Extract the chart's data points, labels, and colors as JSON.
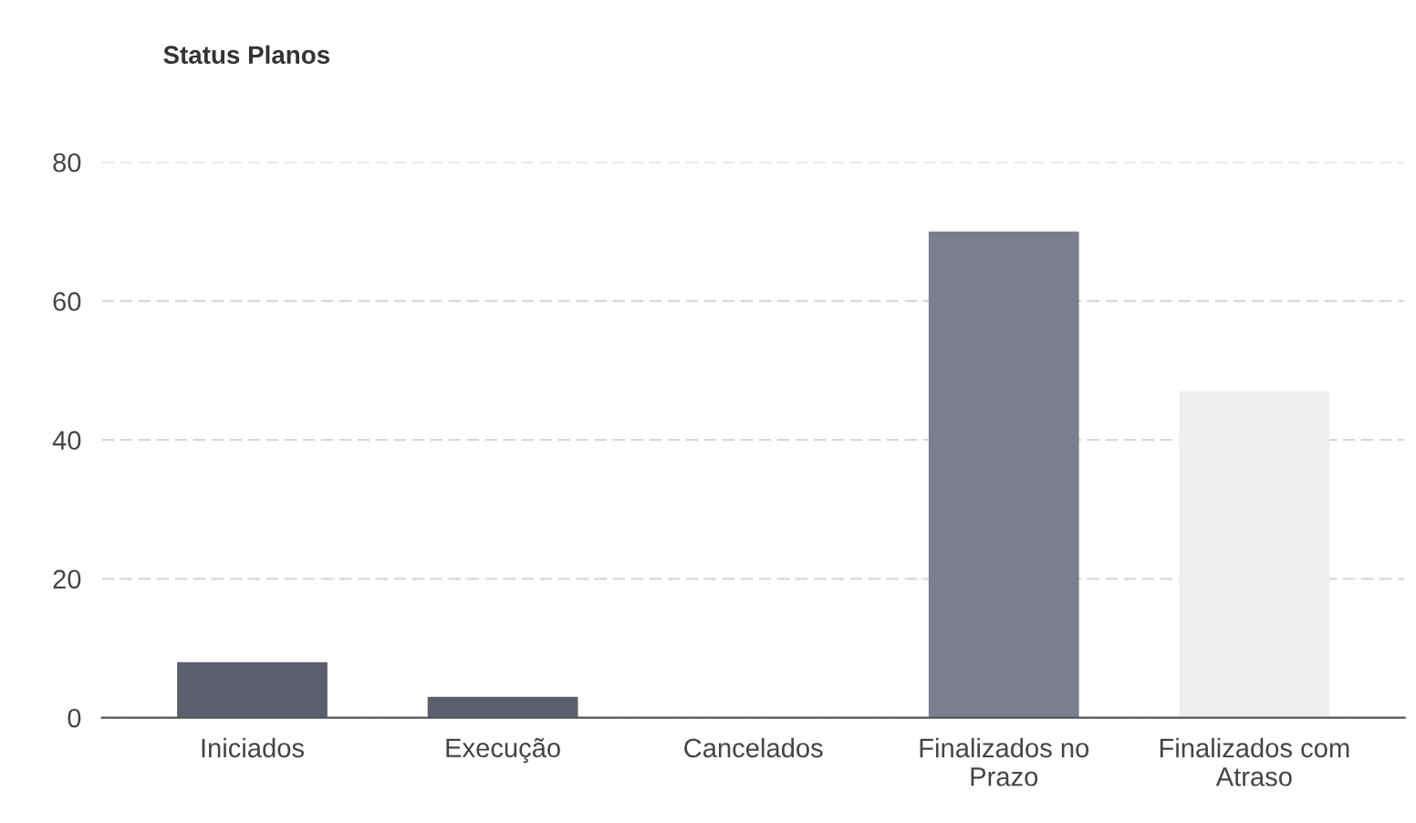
{
  "chart_data": {
    "type": "bar",
    "title": "Status Planos",
    "categories": [
      "Iniciados",
      "Execução",
      "Cancelados",
      "Finalizados no\nPrazo",
      "Finalizados com\nAtraso"
    ],
    "values": [
      8,
      3,
      0,
      70,
      47
    ],
    "colors": [
      "#5b5e6c",
      "#5b5e6c",
      "#5b5e6c",
      "#7b7e8c",
      "#eceef0"
    ],
    "ylim": [
      0,
      80
    ],
    "yticks": [
      0,
      20,
      40,
      60,
      80
    ],
    "grid": "y"
  }
}
